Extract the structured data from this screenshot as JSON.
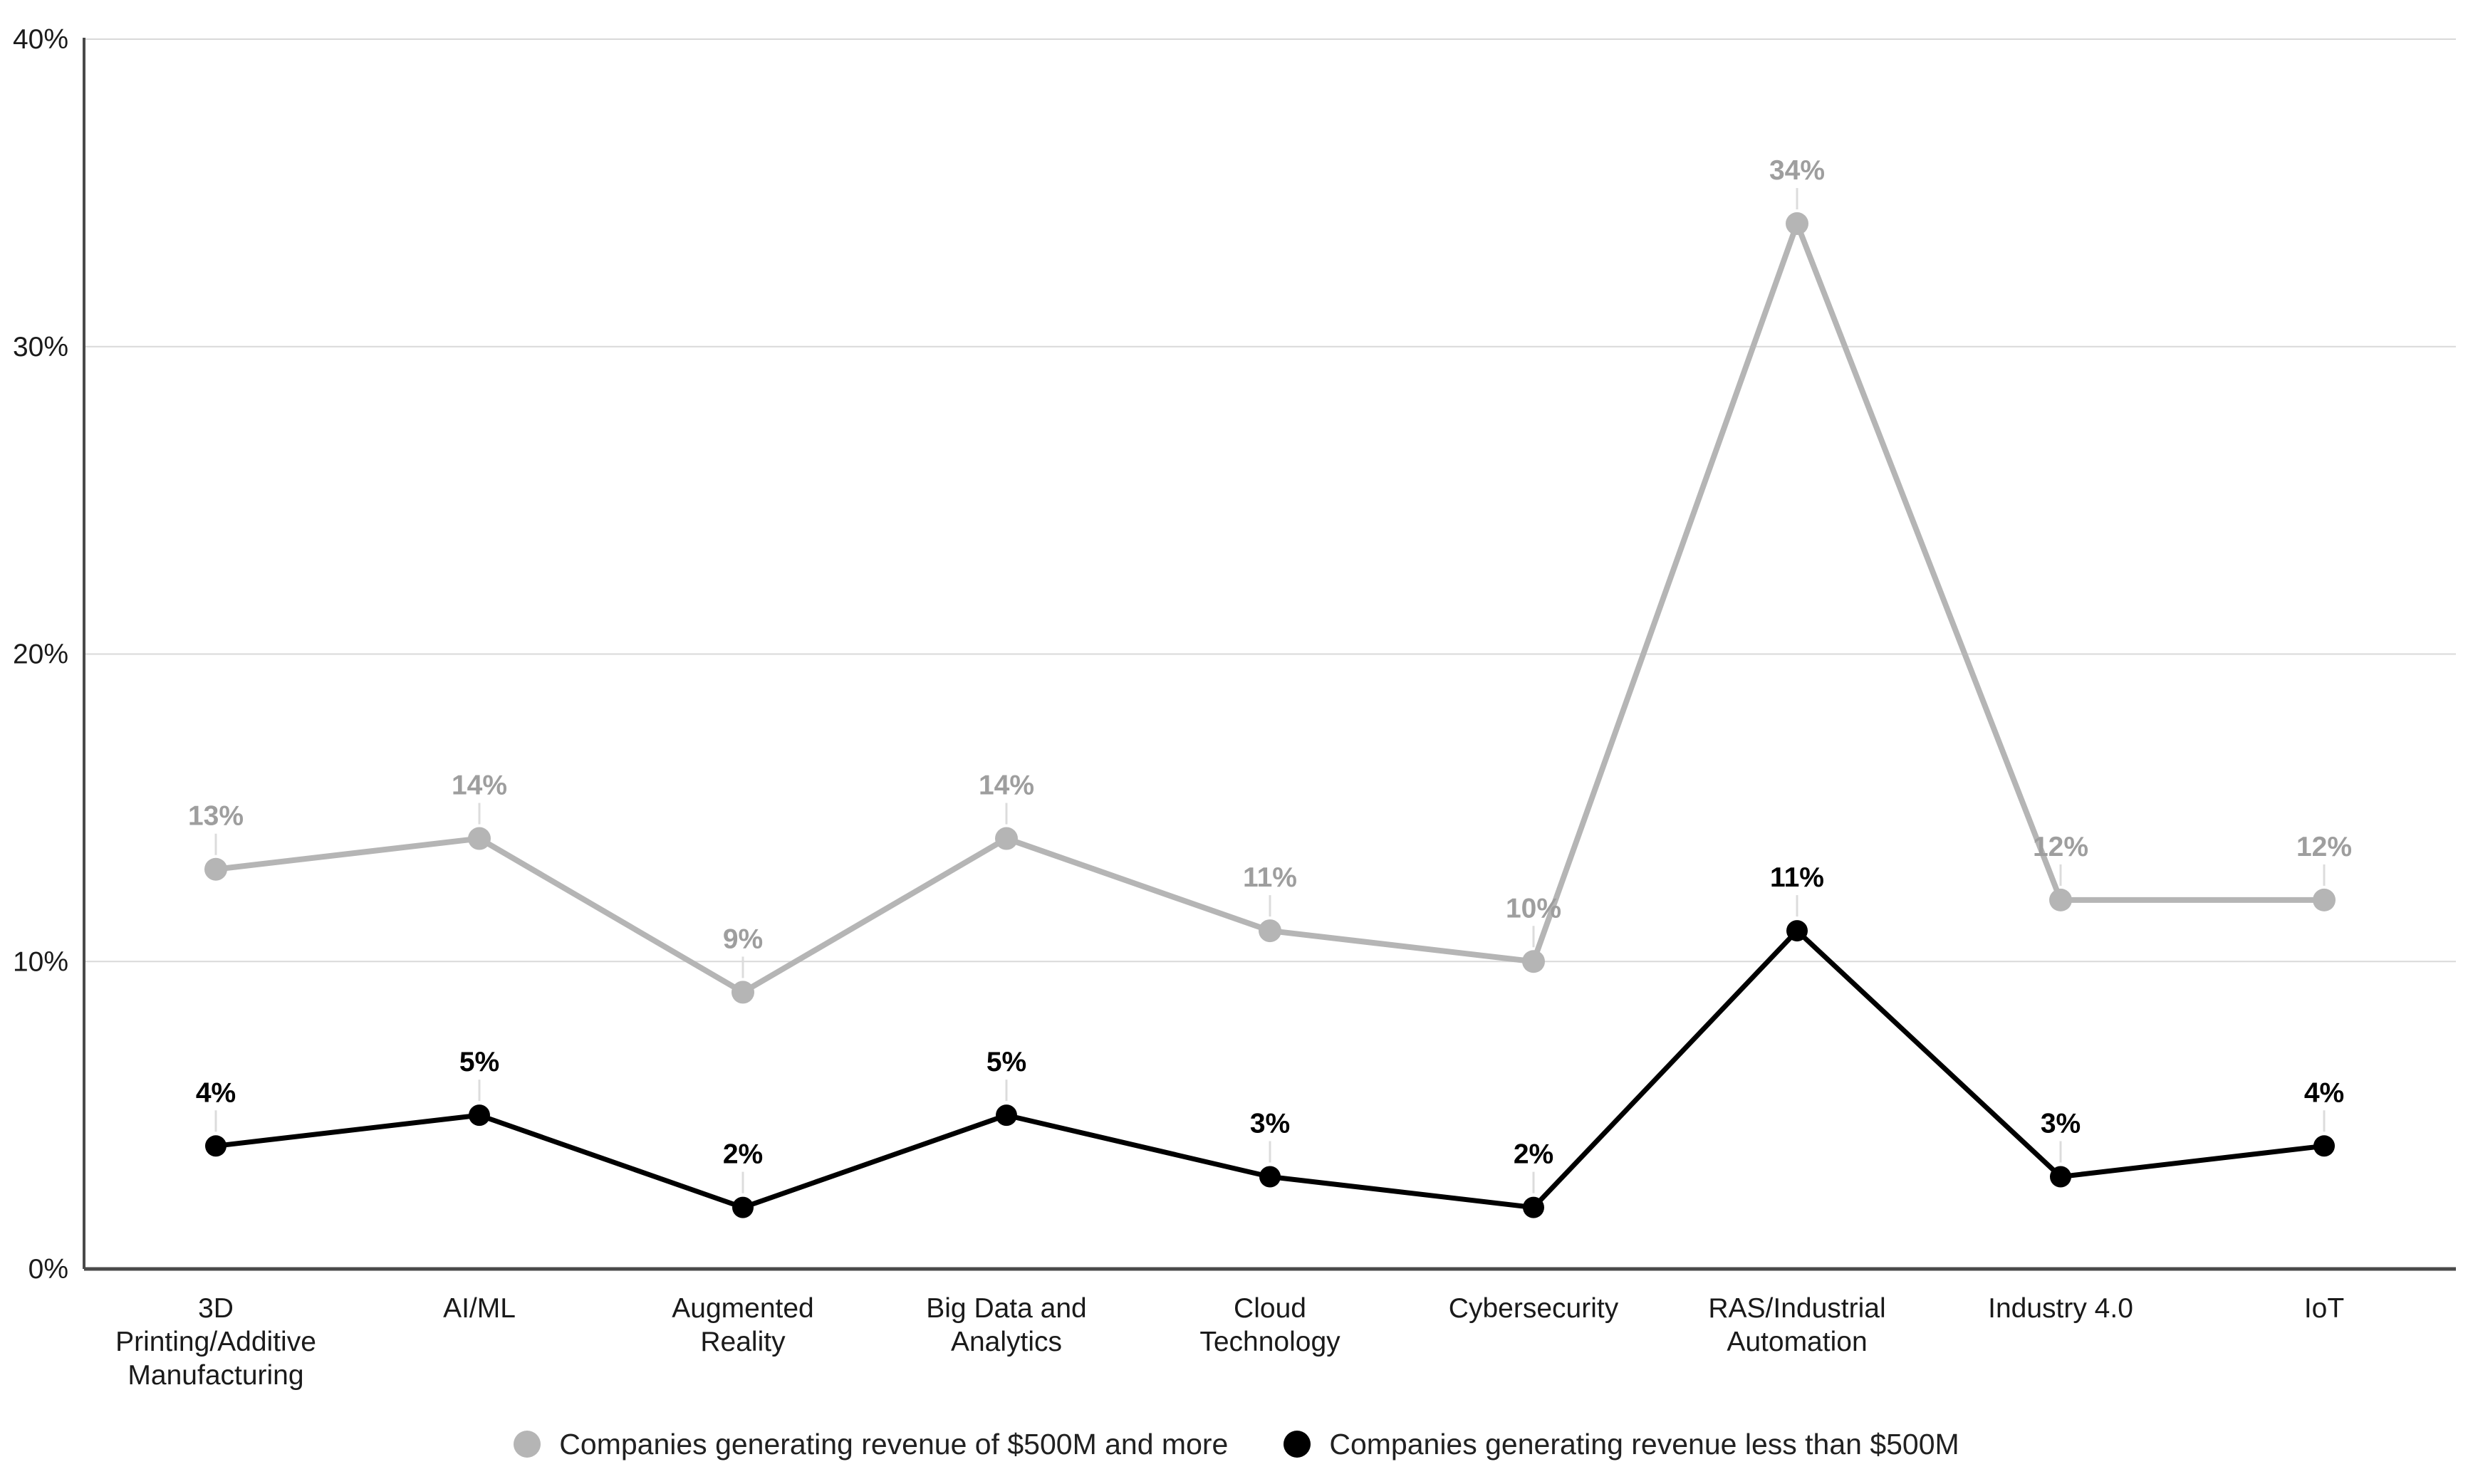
{
  "chart_data": {
    "type": "line",
    "categories": [
      "3D Printing/Additive Manufacturing",
      "AI/ML",
      "Augmented Reality",
      "Big Data and Analytics",
      "Cloud Technology",
      "Cybersecurity",
      "RAS/Industrial Automation",
      "Industry 4.0",
      "IoT"
    ],
    "categories_wrapped": [
      [
        "3D",
        "Printing/Additive",
        "Manufacturing"
      ],
      [
        "AI/ML"
      ],
      [
        "Augmented",
        "Reality"
      ],
      [
        "Big Data and",
        "Analytics"
      ],
      [
        "Cloud",
        "Technology"
      ],
      [
        "Cybersecurity"
      ],
      [
        "RAS/Industrial",
        "Automation"
      ],
      [
        "Industry 4.0"
      ],
      [
        "IoT"
      ]
    ],
    "series": [
      {
        "name": "Companies generating revenue of $500M and more",
        "values": [
          13,
          14,
          9,
          14,
          11,
          10,
          34,
          12,
          12
        ],
        "labels": [
          "13%",
          "14%",
          "9%",
          "14%",
          "11%",
          "10%",
          "34%",
          "12%",
          "12%"
        ],
        "color": "#b5b5b5",
        "label_color": "#9e9e9e"
      },
      {
        "name": "Companies generating revenue less than $500M",
        "values": [
          4,
          5,
          2,
          5,
          3,
          2,
          11,
          3,
          4
        ],
        "labels": [
          "4%",
          "5%",
          "2%",
          "5%",
          "3%",
          "2%",
          "11%",
          "3%",
          "4%"
        ],
        "color": "#000000",
        "label_color": "#000000"
      }
    ],
    "y_ticks": [
      "40%",
      "30%",
      "20%",
      "10%",
      "0%"
    ],
    "y_tick_values": [
      40,
      30,
      20,
      10,
      0
    ],
    "ylim": [
      0,
      40
    ],
    "grid": true,
    "legend_position": "bottom",
    "value_suffix": "%"
  },
  "colors": {
    "background": "#ffffff",
    "gridline": "#d9d9d9",
    "axis": "#4a4a4a",
    "leader_tick": "#dcdcdc",
    "tick_text": "#1a1a1a",
    "series_gray": "#b5b5b5",
    "series_black": "#000000"
  }
}
